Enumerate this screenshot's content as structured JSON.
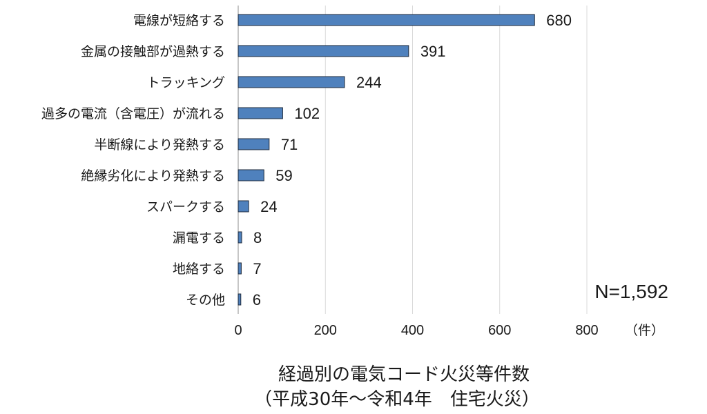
{
  "chart_data": {
    "type": "bar",
    "orientation": "horizontal",
    "categories": [
      "電線が短絡する",
      "金属の接触部が過熱する",
      "トラッキング",
      "過多の電流（含電圧）が流れる",
      "半断線により発熱する",
      "絶縁劣化により発熱する",
      "スパークする",
      "漏電する",
      "地絡する",
      "その他"
    ],
    "values": [
      680,
      391,
      244,
      102,
      71,
      59,
      24,
      8,
      7,
      6
    ],
    "value_labels": [
      "680",
      "391",
      "244",
      "102",
      "71",
      "59",
      "24",
      "8",
      "7",
      "6"
    ],
    "xticks": [
      "0",
      "200",
      "400",
      "600",
      "800"
    ],
    "xlim": [
      0,
      800
    ],
    "unit_label": "（件）",
    "annotation": "N=1,592",
    "title": "経過別の電気コード火災等件数",
    "subtitle": "（平成30年～令和4年　住宅火災）",
    "grid": true,
    "bar_color": "#4f81bd",
    "bar_edge_color": "#1f2a3a",
    "grid_color": "#d9d9d9"
  }
}
